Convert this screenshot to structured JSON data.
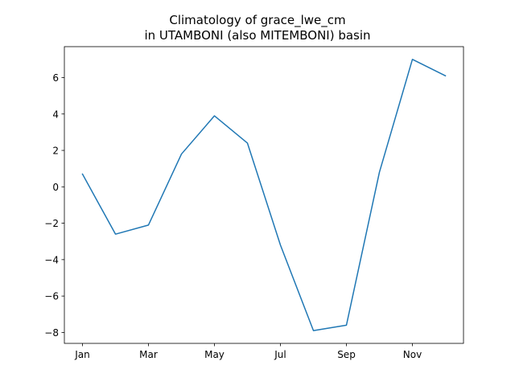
{
  "chart_data": {
    "type": "line",
    "title_line1": "Climatology of grace_lwe_cm",
    "title_line2": "in UTAMBONI (also MITEMBONI) basin",
    "xlabel": "",
    "ylabel": "",
    "x": [
      "Jan",
      "Feb",
      "Mar",
      "Apr",
      "May",
      "Jun",
      "Jul",
      "Aug",
      "Sep",
      "Oct",
      "Nov",
      "Dec"
    ],
    "x_ticks": [
      "Jan",
      "Mar",
      "May",
      "Jul",
      "Sep",
      "Nov"
    ],
    "y_ticks": [
      "6",
      "4",
      "2",
      "0",
      "−2",
      "−4",
      "−6",
      "−8"
    ],
    "ylim": [
      -8.6,
      7.7
    ],
    "grid": false,
    "series": [
      {
        "color": "#1f77b4",
        "values": [
          0.7,
          -2.6,
          -2.1,
          1.8,
          3.9,
          2.4,
          -3.2,
          -7.9,
          -7.6,
          0.8,
          7.0,
          6.1
        ]
      }
    ]
  }
}
